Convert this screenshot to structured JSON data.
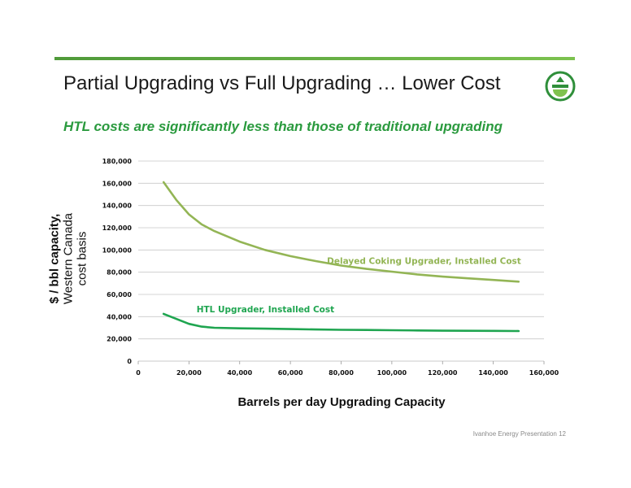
{
  "slide": {
    "title": "Partial Upgrading vs Full Upgrading … Lower Cost",
    "subtitle": "HTL costs are significantly less than those of traditional upgrading",
    "footer": "Ivanhoe Energy Presentation  12",
    "logo_icon": "ivanhoe-energy-logo-icon"
  },
  "colors": {
    "rule": "#5aa83f",
    "subtitle": "#2a9a3e",
    "delayed_coking": "#93b555",
    "htl": "#1fa550",
    "grid": "#c9c9c9",
    "logo": "#2f8f3a"
  },
  "chart_data": {
    "type": "line",
    "xlabel": "Barrels per day Upgrading Capacity",
    "ylabel": [
      "$ / bbl capacity,",
      "Western Canada",
      "cost basis"
    ],
    "xlim": [
      0,
      160000
    ],
    "ylim": [
      0,
      180000
    ],
    "x_ticks": [
      "0",
      "20,000",
      "40,000",
      "60,000",
      "80,000",
      "100,000",
      "120,000",
      "140,000",
      "160,000"
    ],
    "y_ticks": [
      "0",
      "20,000",
      "40,000",
      "60,000",
      "80,000",
      "100,000",
      "120,000",
      "140,000",
      "160,000",
      "180,000"
    ],
    "grid": true,
    "series": [
      {
        "name": "Delayed Coking Upgrader, Installed Cost",
        "x": [
          10000,
          15000,
          20000,
          25000,
          30000,
          40000,
          50000,
          60000,
          70000,
          80000,
          90000,
          100000,
          110000,
          120000,
          130000,
          140000,
          150000
        ],
        "y": [
          161000,
          145000,
          132000,
          123000,
          117000,
          107500,
          100000,
          94500,
          90000,
          86000,
          83000,
          80500,
          78000,
          76000,
          74500,
          73000,
          71500
        ]
      },
      {
        "name": "HTL Upgrader, Installed Cost",
        "x": [
          10000,
          15000,
          20000,
          25000,
          30000,
          40000,
          50000,
          60000,
          70000,
          80000,
          90000,
          100000,
          110000,
          120000,
          130000,
          140000,
          150000
        ],
        "y": [
          42500,
          38000,
          33500,
          31000,
          30000,
          29500,
          29200,
          28800,
          28500,
          28200,
          28000,
          27800,
          27600,
          27400,
          27300,
          27200,
          27100
        ]
      }
    ]
  }
}
